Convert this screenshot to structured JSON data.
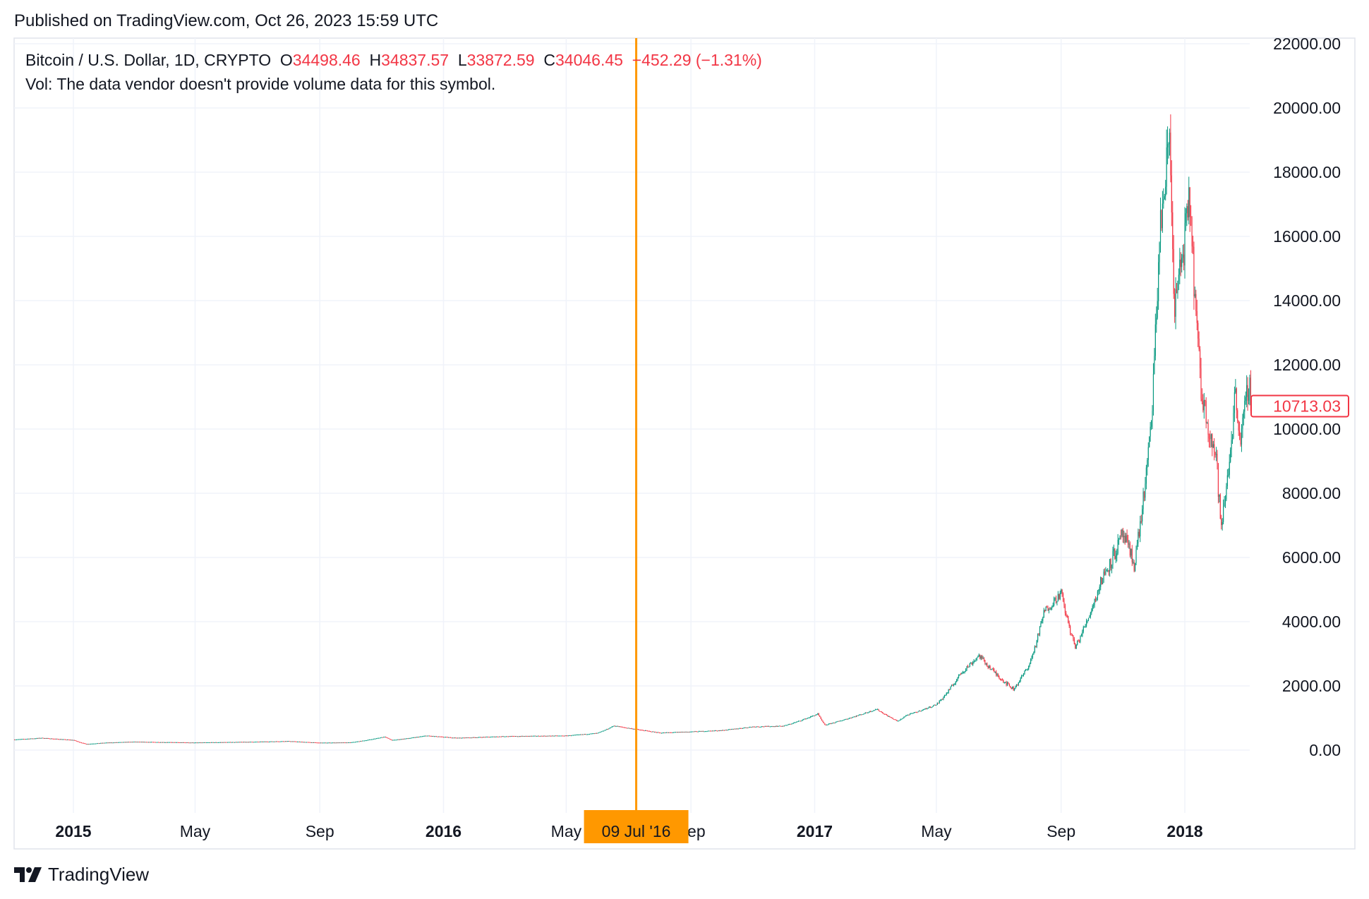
{
  "header": {
    "published": "Published on TradingView.com, Oct 26, 2023 15:59 UTC"
  },
  "legend": {
    "symbol": "Bitcoin / U.S. Dollar, 1D, CRYPTO",
    "o_label": "O",
    "o_value": "34498.46",
    "h_label": "H",
    "h_value": "34837.57",
    "l_label": "L",
    "l_value": "33872.59",
    "c_label": "C",
    "c_value": "34046.45",
    "change": "−452.29 (−1.31%)",
    "volume_note": "Vol: The data vendor doesn't provide volume data for this symbol."
  },
  "crosshair": {
    "date_label": "09 Jul '16",
    "date": "2016-07-09",
    "color": "#FF9800"
  },
  "last_price": {
    "label": "10713.03",
    "value": 10713.03
  },
  "footer": {
    "brand": "TradingView"
  },
  "colors": {
    "up": "#089981",
    "down": "#F23645",
    "grid": "#F0F3FA",
    "text": "#131722"
  },
  "chart_data": {
    "type": "candlestick",
    "interval": "1D",
    "ylim": [
      -2000,
      22000
    ],
    "grid": true,
    "y_ticks": [
      "0.00",
      "2000.00",
      "4000.00",
      "6000.00",
      "8000.00",
      "10000.00",
      "12000.00",
      "14000.00",
      "16000.00",
      "18000.00",
      "20000.00",
      "22000.00"
    ],
    "y_tick_values": [
      0,
      2000,
      4000,
      6000,
      8000,
      10000,
      12000,
      14000,
      16000,
      18000,
      20000,
      22000
    ],
    "x_ticks": [
      {
        "label": "2015",
        "date": "2015-01-01",
        "bold": true
      },
      {
        "label": "May",
        "date": "2015-05-01",
        "bold": false
      },
      {
        "label": "Sep",
        "date": "2015-09-01",
        "bold": false
      },
      {
        "label": "2016",
        "date": "2016-01-01",
        "bold": true
      },
      {
        "label": "May",
        "date": "2016-05-01",
        "bold": false
      },
      {
        "label": "Sep",
        "date": "2016-09-01",
        "bold": false
      },
      {
        "label": "2017",
        "date": "2017-01-01",
        "bold": true
      },
      {
        "label": "May",
        "date": "2017-05-01",
        "bold": false
      },
      {
        "label": "Sep",
        "date": "2017-09-01",
        "bold": false
      },
      {
        "label": "2018",
        "date": "2018-01-01",
        "bold": true
      }
    ],
    "x_range": [
      "2014-11-04",
      "2018-03-08"
    ],
    "approx_close_path": [
      [
        "2014-11-04",
        330
      ],
      [
        "2014-12-01",
        380
      ],
      [
        "2015-01-01",
        315
      ],
      [
        "2015-01-14",
        190
      ],
      [
        "2015-02-01",
        230
      ],
      [
        "2015-03-01",
        260
      ],
      [
        "2015-05-01",
        235
      ],
      [
        "2015-07-01",
        260
      ],
      [
        "2015-08-01",
        280
      ],
      [
        "2015-09-01",
        230
      ],
      [
        "2015-10-01",
        238
      ],
      [
        "2015-11-04",
        420
      ],
      [
        "2015-11-11",
        310
      ],
      [
        "2015-12-15",
        450
      ],
      [
        "2016-01-15",
        380
      ],
      [
        "2016-03-01",
        430
      ],
      [
        "2016-05-01",
        450
      ],
      [
        "2016-06-01",
        530
      ],
      [
        "2016-06-17",
        760
      ],
      [
        "2016-07-09",
        650
      ],
      [
        "2016-08-02",
        540
      ],
      [
        "2016-09-01",
        575
      ],
      [
        "2016-10-01",
        615
      ],
      [
        "2016-11-01",
        730
      ],
      [
        "2016-12-01",
        750
      ],
      [
        "2017-01-04",
        1130
      ],
      [
        "2017-01-11",
        780
      ],
      [
        "2017-02-01",
        970
      ],
      [
        "2017-03-03",
        1280
      ],
      [
        "2017-03-24",
        900
      ],
      [
        "2017-04-01",
        1080
      ],
      [
        "2017-05-01",
        1420
      ],
      [
        "2017-05-25",
        2400
      ],
      [
        "2017-06-12",
        2950
      ],
      [
        "2017-07-16",
        1900
      ],
      [
        "2017-08-01",
        2700
      ],
      [
        "2017-08-15",
        4300
      ],
      [
        "2017-09-01",
        4900
      ],
      [
        "2017-09-15",
        3200
      ],
      [
        "2017-10-01",
        4400
      ],
      [
        "2017-10-12",
        5400
      ],
      [
        "2017-11-01",
        6700
      ],
      [
        "2017-11-12",
        5800
      ],
      [
        "2017-11-28",
        9800
      ],
      [
        "2017-12-07",
        16000
      ],
      [
        "2017-12-17",
        19200
      ],
      [
        "2017-12-22",
        13800
      ],
      [
        "2018-01-06",
        17100
      ],
      [
        "2018-01-17",
        11200
      ],
      [
        "2018-02-01",
        9100
      ],
      [
        "2018-02-06",
        6900
      ],
      [
        "2018-02-20",
        11200
      ],
      [
        "2018-02-25",
        9600
      ],
      [
        "2018-03-05",
        11500
      ],
      [
        "2018-03-08",
        10713.03
      ]
    ]
  }
}
